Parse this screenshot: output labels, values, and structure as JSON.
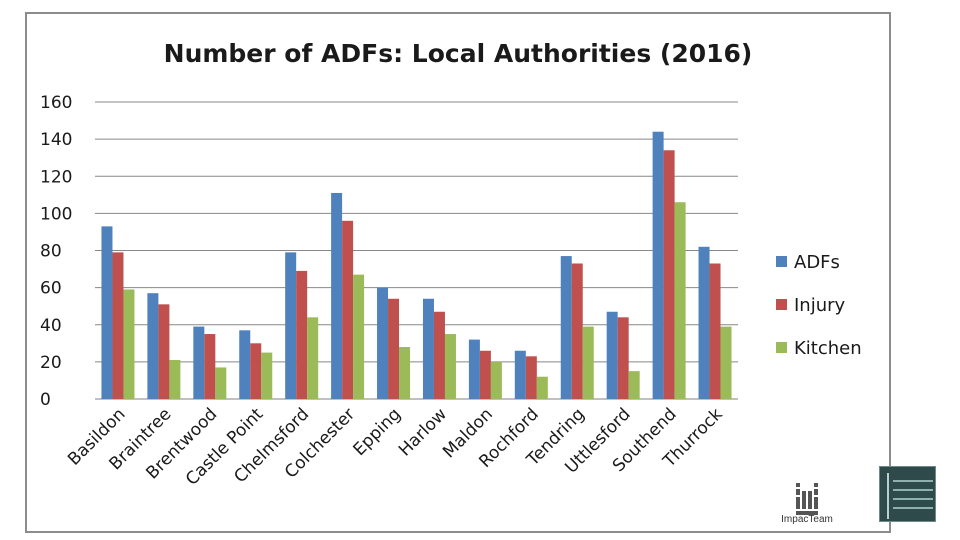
{
  "chart_data": {
    "type": "bar",
    "title": "Number of ADFs: Local Authorities (2016)",
    "xlabel": "",
    "ylabel": "",
    "ylim": [
      0,
      160
    ],
    "yticks": [
      0,
      20,
      40,
      60,
      80,
      100,
      120,
      140,
      160
    ],
    "grid": true,
    "legend_position": "right",
    "categories": [
      "Basildon",
      "Braintree",
      "Brentwood",
      "Castle Point",
      "Chelmsford",
      "Colchester",
      "Epping",
      "Harlow",
      "Maldon",
      "Rochford",
      "Tendring",
      "Uttlesford",
      "Southend",
      "Thurrock"
    ],
    "series": [
      {
        "name": "ADFs",
        "color": "#4f81bd",
        "values": [
          93,
          57,
          39,
          37,
          79,
          111,
          60,
          54,
          32,
          26,
          77,
          47,
          144,
          82
        ]
      },
      {
        "name": "Injury",
        "color": "#c0504d",
        "values": [
          79,
          51,
          35,
          30,
          69,
          96,
          54,
          47,
          26,
          23,
          73,
          44,
          134,
          73
        ]
      },
      {
        "name": "Kitchen",
        "color": "#9bbb59",
        "values": [
          59,
          21,
          17,
          25,
          44,
          67,
          28,
          35,
          20,
          12,
          39,
          15,
          106,
          39
        ]
      }
    ]
  },
  "logos": {
    "impacteam_name": "ImpacTeam",
    "partner_icon": "research-network-logo"
  }
}
